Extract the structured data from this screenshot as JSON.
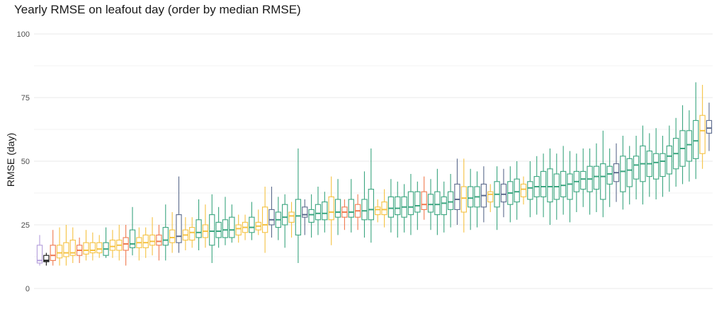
{
  "chart_data": {
    "type": "boxplot",
    "title": "Yearly RMSE on leafout day (order by median RMSE)",
    "xlabel": "",
    "ylabel": "RMSE (day)",
    "ylim": [
      0,
      100
    ],
    "yticks": [
      0,
      25,
      50,
      75,
      100
    ],
    "grid": true,
    "legend": "none",
    "colors": {
      "purple": "#b39ddb",
      "black": "#111111",
      "orange": "#f07a4f",
      "yellow": "#f5c242",
      "slate": "#5b6a8c",
      "green": "#3aa57f",
      "grid": "#e8e8e8"
    },
    "boxes": [
      {
        "c": "purple",
        "min": 9,
        "q1": 10,
        "med": 11,
        "q3": 17,
        "max": 21
      },
      {
        "c": "black",
        "min": 9,
        "q1": 10.5,
        "med": 11,
        "q3": 13,
        "max": 14
      },
      {
        "c": "orange",
        "min": 9,
        "q1": 11,
        "med": 13,
        "q3": 17,
        "max": 23
      },
      {
        "c": "yellow",
        "min": 9,
        "q1": 12,
        "med": 14,
        "q3": 17,
        "max": 24
      },
      {
        "c": "yellow",
        "min": 9,
        "q1": 12.5,
        "med": 14,
        "q3": 18,
        "max": 25
      },
      {
        "c": "yellow",
        "min": 10,
        "q1": 13,
        "med": 14,
        "q3": 19,
        "max": 24
      },
      {
        "c": "orange",
        "min": 10,
        "q1": 13,
        "med": 15,
        "q3": 17,
        "max": 20
      },
      {
        "c": "yellow",
        "min": 11,
        "q1": 13.5,
        "med": 15,
        "q3": 18,
        "max": 23
      },
      {
        "c": "yellow",
        "min": 11,
        "q1": 14,
        "med": 15,
        "q3": 18,
        "max": 22
      },
      {
        "c": "yellow",
        "min": 12,
        "q1": 14,
        "med": 15.5,
        "q3": 18,
        "max": 21
      },
      {
        "c": "green",
        "min": 12,
        "q1": 13,
        "med": 15.5,
        "q3": 18,
        "max": 24
      },
      {
        "c": "yellow",
        "min": 12,
        "q1": 15,
        "med": 16.5,
        "q3": 19,
        "max": 23
      },
      {
        "c": "yellow",
        "min": 11,
        "q1": 15,
        "med": 17,
        "q3": 19,
        "max": 25
      },
      {
        "c": "orange",
        "min": 9,
        "q1": 15,
        "med": 17.5,
        "q3": 20,
        "max": 25
      },
      {
        "c": "green",
        "min": 13,
        "q1": 16,
        "med": 17.5,
        "q3": 23,
        "max": 32
      },
      {
        "c": "yellow",
        "min": 11,
        "q1": 16,
        "med": 18,
        "q3": 20,
        "max": 24
      },
      {
        "c": "yellow",
        "min": 12,
        "q1": 16,
        "med": 18,
        "q3": 21,
        "max": 24
      },
      {
        "c": "yellow",
        "min": 13,
        "q1": 17,
        "med": 18.5,
        "q3": 21,
        "max": 28
      },
      {
        "c": "orange",
        "min": 11,
        "q1": 17,
        "med": 18.5,
        "q3": 21,
        "max": 25
      },
      {
        "c": "green",
        "min": 11,
        "q1": 17,
        "med": 19,
        "q3": 24,
        "max": 33
      },
      {
        "c": "yellow",
        "min": 14,
        "q1": 18,
        "med": 20,
        "q3": 23,
        "max": 30
      },
      {
        "c": "slate",
        "min": 14,
        "q1": 18,
        "med": 20.5,
        "q3": 29,
        "max": 44
      },
      {
        "c": "yellow",
        "min": 15,
        "q1": 19,
        "med": 21,
        "q3": 23,
        "max": 28
      },
      {
        "c": "yellow",
        "min": 16,
        "q1": 19,
        "med": 22,
        "q3": 24,
        "max": 28
      },
      {
        "c": "green",
        "min": 15,
        "q1": 20,
        "med": 22,
        "q3": 27,
        "max": 35
      },
      {
        "c": "yellow",
        "min": 16,
        "q1": 20,
        "med": 22.5,
        "q3": 25,
        "max": 33
      },
      {
        "c": "green",
        "min": 10,
        "q1": 17,
        "med": 22.5,
        "q3": 29,
        "max": 37
      },
      {
        "c": "green",
        "min": 16,
        "q1": 20,
        "med": 22.5,
        "q3": 26,
        "max": 32
      },
      {
        "c": "green",
        "min": 17,
        "q1": 20,
        "med": 23,
        "q3": 27,
        "max": 36
      },
      {
        "c": "green",
        "min": 18,
        "q1": 20,
        "med": 23,
        "q3": 28,
        "max": 33
      },
      {
        "c": "yellow",
        "min": 18,
        "q1": 21,
        "med": 23.5,
        "q3": 25,
        "max": 29
      },
      {
        "c": "yellow",
        "min": 19,
        "q1": 22,
        "med": 24,
        "q3": 26,
        "max": 29
      },
      {
        "c": "green",
        "min": 19,
        "q1": 22,
        "med": 24,
        "q3": 28,
        "max": 34
      },
      {
        "c": "yellow",
        "min": 21,
        "q1": 23,
        "med": 24.5,
        "q3": 26,
        "max": 31
      },
      {
        "c": "yellow",
        "min": 14,
        "q1": 22,
        "med": 25,
        "q3": 32,
        "max": 40
      },
      {
        "c": "slate",
        "min": 20,
        "q1": 25,
        "med": 27,
        "q3": 31,
        "max": 40
      },
      {
        "c": "green",
        "min": 19,
        "q1": 24,
        "med": 27,
        "q3": 30,
        "max": 36
      },
      {
        "c": "green",
        "min": 16,
        "q1": 25,
        "med": 28,
        "q3": 33,
        "max": 37
      },
      {
        "c": "yellow",
        "min": 20,
        "q1": 26,
        "med": 28.5,
        "q3": 30,
        "max": 34
      },
      {
        "c": "green",
        "min": 10,
        "q1": 21,
        "med": 28.5,
        "q3": 35,
        "max": 55
      },
      {
        "c": "slate",
        "min": 21,
        "q1": 28,
        "med": 29,
        "q3": 32,
        "max": 35
      },
      {
        "c": "green",
        "min": 20,
        "q1": 26,
        "med": 29,
        "q3": 31,
        "max": 37
      },
      {
        "c": "green",
        "min": 21,
        "q1": 27,
        "med": 29.5,
        "q3": 33,
        "max": 40
      },
      {
        "c": "green",
        "min": 22,
        "q1": 27,
        "med": 29.5,
        "q3": 34,
        "max": 38
      },
      {
        "c": "yellow",
        "min": 17,
        "q1": 27,
        "med": 30,
        "q3": 36,
        "max": 44
      },
      {
        "c": "green",
        "min": 21,
        "q1": 28,
        "med": 30,
        "q3": 35,
        "max": 43
      },
      {
        "c": "orange",
        "min": 23,
        "q1": 28,
        "med": 30,
        "q3": 32,
        "max": 35
      },
      {
        "c": "green",
        "min": 22,
        "q1": 28,
        "med": 30,
        "q3": 35,
        "max": 43
      },
      {
        "c": "orange",
        "min": 23,
        "q1": 28,
        "med": 30.5,
        "q3": 33,
        "max": 37
      },
      {
        "c": "green",
        "min": 20,
        "q1": 27,
        "med": 30.5,
        "q3": 35,
        "max": 46
      },
      {
        "c": "green",
        "min": 18,
        "q1": 27,
        "med": 31,
        "q3": 39,
        "max": 55
      },
      {
        "c": "yellow",
        "min": 26,
        "q1": 29,
        "med": 31,
        "q3": 32,
        "max": 35
      },
      {
        "c": "yellow",
        "min": 24,
        "q1": 29,
        "med": 31,
        "q3": 34,
        "max": 39
      },
      {
        "c": "green",
        "min": 22,
        "q1": 28,
        "med": 31.5,
        "q3": 36,
        "max": 43
      },
      {
        "c": "green",
        "min": 20,
        "q1": 29,
        "med": 31.5,
        "q3": 36,
        "max": 42
      },
      {
        "c": "green",
        "min": 22,
        "q1": 28,
        "med": 32,
        "q3": 36,
        "max": 41
      },
      {
        "c": "green",
        "min": 21,
        "q1": 29,
        "med": 32,
        "q3": 38,
        "max": 45
      },
      {
        "c": "green",
        "min": 23,
        "q1": 30,
        "med": 32.5,
        "q3": 38,
        "max": 42
      },
      {
        "c": "orange",
        "min": 27,
        "q1": 31,
        "med": 33,
        "q3": 38,
        "max": 44
      },
      {
        "c": "green",
        "min": 23,
        "q1": 30,
        "med": 33,
        "q3": 37,
        "max": 43
      },
      {
        "c": "green",
        "min": 21,
        "q1": 29,
        "med": 33,
        "q3": 38,
        "max": 47
      },
      {
        "c": "green",
        "min": 22,
        "q1": 29,
        "med": 33.5,
        "q3": 36,
        "max": 42
      },
      {
        "c": "green",
        "min": 24,
        "q1": 31,
        "med": 34,
        "q3": 38,
        "max": 45
      },
      {
        "c": "slate",
        "min": 25,
        "q1": 31,
        "med": 35,
        "q3": 41,
        "max": 51
      },
      {
        "c": "yellow",
        "min": 22,
        "q1": 30,
        "med": 35.5,
        "q3": 40,
        "max": 51
      },
      {
        "c": "green",
        "min": 23,
        "q1": 32,
        "med": 35.5,
        "q3": 40,
        "max": 47
      },
      {
        "c": "green",
        "min": 24,
        "q1": 32,
        "med": 36,
        "q3": 40,
        "max": 46
      },
      {
        "c": "slate",
        "min": 26,
        "q1": 32,
        "med": 36.5,
        "q3": 41,
        "max": 48
      },
      {
        "c": "yellow",
        "min": 30,
        "q1": 34,
        "med": 37,
        "q3": 38,
        "max": 41
      },
      {
        "c": "green",
        "min": 23,
        "q1": 32,
        "med": 37,
        "q3": 42,
        "max": 48
      },
      {
        "c": "slate",
        "min": 28,
        "q1": 34,
        "med": 37,
        "q3": 41,
        "max": 47
      },
      {
        "c": "green",
        "min": 26,
        "q1": 33,
        "med": 37.5,
        "q3": 42,
        "max": 48
      },
      {
        "c": "green",
        "min": 27,
        "q1": 34,
        "med": 38,
        "q3": 43,
        "max": 50
      },
      {
        "c": "yellow",
        "min": 33,
        "q1": 36,
        "med": 39,
        "q3": 41,
        "max": 44
      },
      {
        "c": "green",
        "min": 28,
        "q1": 35,
        "med": 39.5,
        "q3": 42,
        "max": 50
      },
      {
        "c": "green",
        "min": 29,
        "q1": 36,
        "med": 40,
        "q3": 44,
        "max": 52
      },
      {
        "c": "green",
        "min": 28,
        "q1": 36,
        "med": 40,
        "q3": 46,
        "max": 53
      },
      {
        "c": "green",
        "min": 25,
        "q1": 34,
        "med": 40,
        "q3": 47,
        "max": 55
      },
      {
        "c": "green",
        "min": 27,
        "q1": 35,
        "med": 40,
        "q3": 45,
        "max": 53
      },
      {
        "c": "green",
        "min": 29,
        "q1": 36,
        "med": 40.5,
        "q3": 46,
        "max": 56
      },
      {
        "c": "green",
        "min": 26,
        "q1": 35,
        "med": 41,
        "q3": 45,
        "max": 54
      },
      {
        "c": "green",
        "min": 30,
        "q1": 38,
        "med": 42,
        "q3": 46,
        "max": 53
      },
      {
        "c": "green",
        "min": 32,
        "q1": 39,
        "med": 43,
        "q3": 46,
        "max": 55
      },
      {
        "c": "green",
        "min": 29,
        "q1": 38,
        "med": 43,
        "q3": 48,
        "max": 55
      },
      {
        "c": "green",
        "min": 30,
        "q1": 39,
        "med": 44,
        "q3": 48,
        "max": 57
      },
      {
        "c": "green",
        "min": 28,
        "q1": 35,
        "med": 44,
        "q3": 49,
        "max": 62
      },
      {
        "c": "green",
        "min": 32,
        "q1": 41,
        "med": 45,
        "q3": 48,
        "max": 55
      },
      {
        "c": "slate",
        "min": 34,
        "q1": 42,
        "med": 45.5,
        "q3": 49,
        "max": 57
      },
      {
        "c": "green",
        "min": 31,
        "q1": 38,
        "med": 46,
        "q3": 52,
        "max": 60
      },
      {
        "c": "green",
        "min": 33,
        "q1": 40,
        "med": 46.5,
        "q3": 51,
        "max": 56
      },
      {
        "c": "green",
        "min": 35,
        "q1": 43,
        "med": 48.5,
        "q3": 52,
        "max": 60
      },
      {
        "c": "green",
        "min": 33,
        "q1": 42,
        "med": 49,
        "q3": 56,
        "max": 64
      },
      {
        "c": "green",
        "min": 36,
        "q1": 44,
        "med": 49,
        "q3": 54,
        "max": 61
      },
      {
        "c": "green",
        "min": 35,
        "q1": 43,
        "med": 49.5,
        "q3": 53,
        "max": 63
      },
      {
        "c": "green",
        "min": 36,
        "q1": 44,
        "med": 50,
        "q3": 53,
        "max": 60
      },
      {
        "c": "green",
        "min": 38,
        "q1": 45,
        "med": 52,
        "q3": 56,
        "max": 64
      },
      {
        "c": "green",
        "min": 40,
        "q1": 47,
        "med": 53,
        "q3": 59,
        "max": 67
      },
      {
        "c": "green",
        "min": 41,
        "q1": 48,
        "med": 55,
        "q3": 62,
        "max": 72
      },
      {
        "c": "green",
        "min": 42,
        "q1": 50,
        "med": 56.5,
        "q3": 62,
        "max": 70
      },
      {
        "c": "green",
        "min": 43,
        "q1": 51,
        "med": 58,
        "q3": 66,
        "max": 81
      },
      {
        "c": "yellow",
        "min": 47,
        "q1": 53,
        "med": 62,
        "q3": 68,
        "max": 80
      },
      {
        "c": "slate",
        "min": 54,
        "q1": 61,
        "med": 63,
        "q3": 66,
        "max": 73
      }
    ]
  }
}
